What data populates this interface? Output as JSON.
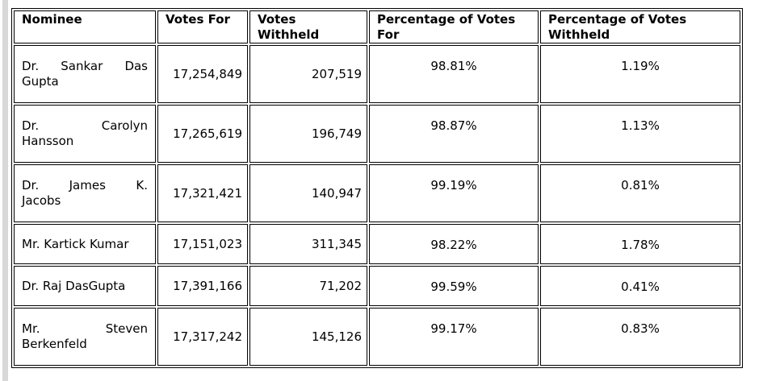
{
  "page": {
    "background_color": "#ffffff",
    "left_edge_strip_color": "#d8d8d8",
    "border_color": "#000000",
    "text_color": "#000000"
  },
  "table": {
    "columns": [
      "Nominee",
      "Votes For",
      "Votes\nWithheld",
      "Percentage of Votes\nFor",
      "Percentage of Votes\nWithheld"
    ],
    "rows": [
      {
        "name_lines": [
          "Dr. Sankar Das",
          "Gupta"
        ],
        "votes_for": "17,254,849",
        "votes_withheld": "207,519",
        "pct_for": "98.81%",
        "pct_withheld": "1.19%"
      },
      {
        "name_lines": [
          "Dr. Carolyn",
          "Hansson"
        ],
        "votes_for": "17,265,619",
        "votes_withheld": "196,749",
        "pct_for": "98.87%",
        "pct_withheld": "1.13%"
      },
      {
        "name_lines": [
          "Dr. James K.",
          "Jacobs"
        ],
        "votes_for": "17,321,421",
        "votes_withheld": "140,947",
        "pct_for": "99.19%",
        "pct_withheld": "0.81%"
      },
      {
        "name_lines": [
          "Mr. Kartick Kumar"
        ],
        "votes_for": "17,151,023",
        "votes_withheld": "311,345",
        "pct_for": "98.22%",
        "pct_withheld": "1.78%"
      },
      {
        "name_lines": [
          "Dr. Raj DasGupta"
        ],
        "votes_for": "17,391,166",
        "votes_withheld": "71,202",
        "pct_for": "99.59%",
        "pct_withheld": "0.41%"
      },
      {
        "name_lines": [
          "Mr. Steven",
          "Berkenfeld"
        ],
        "votes_for": "17,317,242",
        "votes_withheld": "145,126",
        "pct_for": "99.17%",
        "pct_withheld": "0.83%"
      }
    ]
  }
}
